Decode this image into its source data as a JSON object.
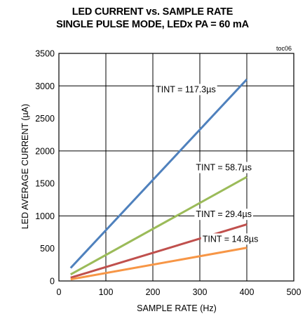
{
  "chart_data": {
    "type": "line",
    "title": "LED CURRENT vs. SAMPLE RATE",
    "subtitle": "SINGLE PULSE MODE, LEDx PA = 60 mA",
    "corner_label": "toc06",
    "xlabel": "SAMPLE RATE (Hz)",
    "ylabel": "LED AVERAGE CURRENT (µA)",
    "xlim": [
      0,
      500
    ],
    "ylim": [
      0,
      3500
    ],
    "xticks": [
      0,
      100,
      200,
      300,
      400,
      500
    ],
    "yticks": [
      0,
      500,
      1000,
      1500,
      2000,
      2500,
      3000,
      3500
    ],
    "grid": true,
    "series": [
      {
        "name": "TINT = 117.3µs",
        "color": "#4f81bd",
        "x": [
          25,
          400
        ],
        "y": [
          200,
          3100
        ]
      },
      {
        "name": "TINT = 58.7µs",
        "color": "#9bbb59",
        "x": [
          25,
          400
        ],
        "y": [
          100,
          1600
        ]
      },
      {
        "name": "TINT = 29.4µs",
        "color": "#c0504d",
        "x": [
          25,
          400
        ],
        "y": [
          50,
          870
        ]
      },
      {
        "name": "TINT = 14.8µs",
        "color": "#f79646",
        "x": [
          25,
          400
        ],
        "y": [
          25,
          510
        ]
      }
    ]
  }
}
